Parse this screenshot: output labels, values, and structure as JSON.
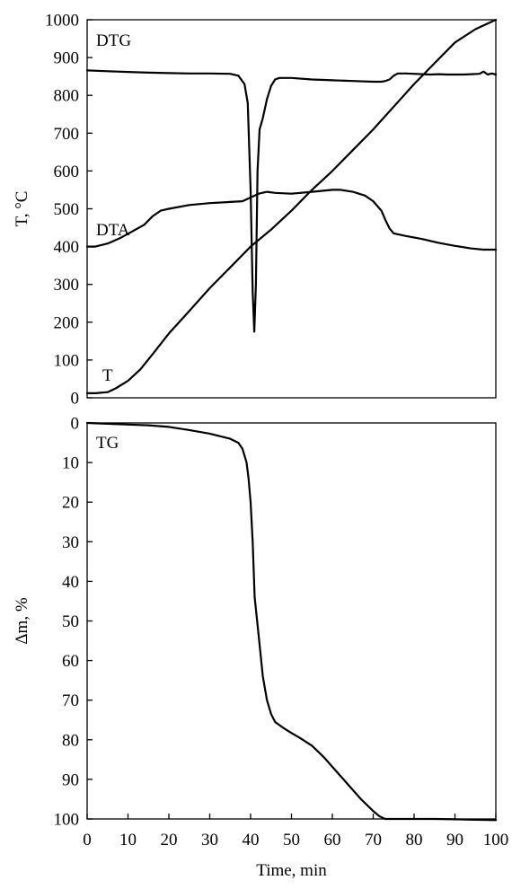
{
  "chart_data": [
    {
      "type": "line",
      "panel": "top",
      "xlim": [
        0,
        100
      ],
      "ylim": [
        0,
        1000
      ],
      "yticks": [
        0,
        100,
        200,
        300,
        400,
        500,
        600,
        700,
        800,
        900,
        1000
      ],
      "xticks": [],
      "ylabel": "T, °C",
      "grid": false,
      "series": [
        {
          "name": "DTG",
          "x": [
            0,
            5,
            10,
            15,
            20,
            25,
            30,
            35,
            37,
            38.5,
            39.3,
            40,
            40.5,
            40.9,
            41.3,
            41.7,
            42.2,
            43,
            44,
            45,
            46,
            47,
            50,
            55,
            60,
            65,
            70,
            72,
            73,
            74,
            75,
            76,
            78,
            80,
            82,
            84,
            86,
            88,
            90,
            92,
            94,
            96,
            97,
            98,
            99,
            100
          ],
          "y": [
            866,
            864,
            862,
            860,
            859,
            858,
            858,
            857,
            852,
            830,
            780,
            550,
            280,
            175,
            300,
            600,
            710,
            740,
            790,
            825,
            842,
            846,
            846,
            842,
            840,
            838,
            836,
            836,
            838,
            842,
            852,
            858,
            858,
            857,
            856,
            855,
            856,
            855,
            855,
            855,
            856,
            857,
            863,
            855,
            858,
            855
          ]
        },
        {
          "name": "DTA",
          "x": [
            0,
            2,
            5,
            8,
            11,
            14,
            16,
            18,
            20,
            25,
            30,
            35,
            38,
            40,
            42,
            44,
            46,
            50,
            55,
            60,
            62,
            65,
            68,
            70,
            72,
            73,
            74,
            75,
            78,
            82,
            86,
            90,
            94,
            97,
            100
          ],
          "y": [
            400,
            400,
            408,
            422,
            440,
            458,
            480,
            495,
            500,
            510,
            515,
            518,
            520,
            530,
            540,
            545,
            542,
            540,
            545,
            550,
            550,
            545,
            535,
            520,
            495,
            470,
            448,
            435,
            428,
            420,
            410,
            402,
            395,
            392,
            392
          ]
        },
        {
          "name": "T",
          "x": [
            0,
            2,
            5,
            7,
            10,
            13,
            16,
            20,
            25,
            30,
            35,
            40,
            45,
            50,
            55,
            60,
            65,
            70,
            75,
            80,
            85,
            90,
            95,
            100
          ],
          "y": [
            12,
            12,
            15,
            25,
            45,
            75,
            115,
            170,
            230,
            290,
            345,
            400,
            445,
            495,
            550,
            600,
            655,
            710,
            770,
            830,
            885,
            940,
            975,
            1000
          ]
        }
      ]
    },
    {
      "type": "line",
      "panel": "bottom",
      "xlim": [
        0,
        100
      ],
      "ylim": [
        0,
        100
      ],
      "yticks": [
        0,
        10,
        20,
        30,
        40,
        50,
        60,
        70,
        80,
        90,
        100
      ],
      "y_inverted": true,
      "xticks": [
        0,
        10,
        20,
        30,
        40,
        50,
        60,
        70,
        80,
        90,
        100
      ],
      "xlabel": "Time, min",
      "ylabel": "Δm, %",
      "grid": false,
      "series": [
        {
          "name": "TG",
          "x": [
            0,
            5,
            10,
            15,
            20,
            25,
            30,
            35,
            37,
            38,
            39,
            39.5,
            40,
            40.5,
            41,
            42,
            43,
            44,
            45,
            46,
            48,
            50,
            52,
            55,
            58,
            61,
            64,
            67,
            70,
            71.5,
            72.5,
            73,
            75,
            80,
            85,
            90,
            95,
            100
          ],
          "y": [
            0,
            0.2,
            0.4,
            0.6,
            1,
            1.8,
            2.7,
            4,
            5,
            6.5,
            10,
            14,
            20,
            30,
            44,
            54,
            64,
            70,
            73.5,
            75.5,
            77,
            78.3,
            79.5,
            81.5,
            84.5,
            88,
            91.5,
            95,
            98,
            99.3,
            99.8,
            100,
            100,
            100,
            100,
            100.1,
            100.2,
            100.3
          ]
        }
      ]
    }
  ]
}
